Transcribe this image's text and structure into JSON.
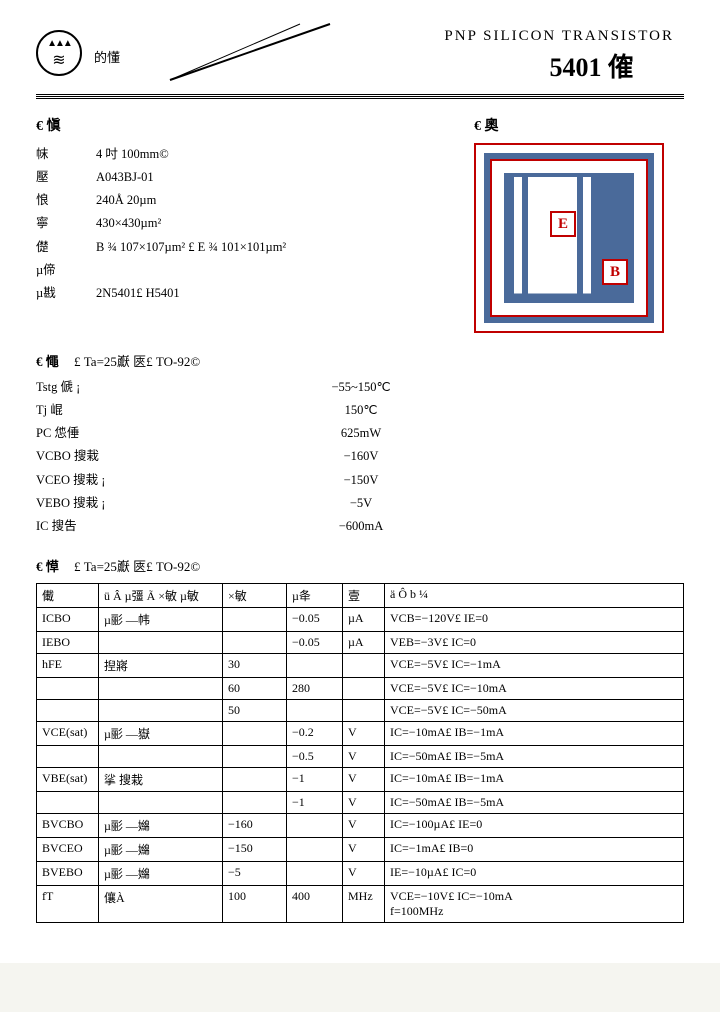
{
  "header": {
    "logo_label": "的懂",
    "subtitle": "PNP   SILICON   TRANSISTOR",
    "title": "5401 傕"
  },
  "section1": {
    "head_left": "€  愼",
    "head_right": "€  奧",
    "specs": [
      {
        "k": "帓",
        "v": "4 吋      100mm©"
      },
      {
        "k": "壓",
        "v": "A043BJ-01"
      },
      {
        "k": "悢",
        "v": "240Å 20µm"
      },
      {
        "k": "寧",
        "v": "430×430µm²"
      },
      {
        "k": "儊",
        "v": "B ¾  107×107µm² £  E ¾  101×101µm²"
      },
      {
        "k": "µ偙",
        "v": ""
      },
      {
        "k": "µ戡",
        "v": "2N5401£  H5401"
      }
    ],
    "die_e": "E",
    "die_b": "B"
  },
  "ratings": {
    "head": "€  憴",
    "cond": "£ Ta=25巚  匧£              TO-92©",
    "rows": [
      {
        "sym": "Tstg 傂                              ¡",
        "val": "−55~150℃"
      },
      {
        "sym": "Tj 崐",
        "val": "150℃"
      },
      {
        "sym": "PC 怹倕",
        "val": "625mW"
      },
      {
        "sym": "VCBO 搜栽",
        "val": "−160V"
      },
      {
        "sym": "VCEO 搜栽                    ¡",
        "val": "−150V"
      },
      {
        "sym": "VEBO 搜栽                              ¡",
        "val": "−5V"
      },
      {
        "sym": "IC 搜吿",
        "val": "−600mA"
      }
    ]
  },
  "char": {
    "head": "€  愺",
    "cond": "£ Ta=25巚  匧£              TO-92©",
    "headers": {
      "sym": "儎",
      "name": "ü     Â   µ彊    Ã           ×敏      µ敏",
      "min": "×敏",
      "max": "µ夅",
      "unit": "壹",
      "cond": "ä    Ô    b    ¼"
    },
    "rows": [
      {
        "sym": "ICBO",
        "name": "µ彨    —帏",
        "min": "",
        "max": "−0.05",
        "unit": "µA",
        "cond": "VCB=−120V£ IE=0"
      },
      {
        "sym": "IEBO",
        "name": "",
        "min": "",
        "max": "−0.05",
        "unit": "µA",
        "cond": "VEB=−3V£ IC=0"
      },
      {
        "sym": "hFE",
        "name": "揑嶈",
        "min": "30",
        "max": "",
        "unit": "",
        "cond": "VCE=−5V£ IC=−1mA"
      },
      {
        "sym": "",
        "name": "",
        "min": "60",
        "max": "280",
        "unit": "",
        "cond": "VCE=−5V£ IC=−10mA"
      },
      {
        "sym": "",
        "name": "",
        "min": "50",
        "max": "",
        "unit": "",
        "cond": "VCE=−5V£ IC=−50mA"
      },
      {
        "sym": "VCE(sat)",
        "name": "µ彨    —嶽",
        "min": "",
        "max": "−0.2",
        "unit": "V",
        "cond": "IC=−10mA£ IB=−1mA"
      },
      {
        "sym": "",
        "name": "",
        "min": "",
        "max": "−0.5",
        "unit": "V",
        "cond": "IC=−50mA£ IB=−5mA"
      },
      {
        "sym": "VBE(sat)",
        "name": "挲     搜栽",
        "min": "",
        "max": "−1",
        "unit": "V",
        "cond": "IC=−10mA£ IB=−1mA"
      },
      {
        "sym": "",
        "name": "",
        "min": "",
        "max": "−1",
        "unit": "V",
        "cond": "IC=−50mA£ IB=−5mA"
      },
      {
        "sym": "BVCBO",
        "name": "µ彨    —嬵",
        "min": "−160",
        "max": "",
        "unit": "V",
        "cond": "IC=−100µA£ IE=0"
      },
      {
        "sym": "BVCEO",
        "name": "µ彨    —嬵",
        "min": "−150",
        "max": "",
        "unit": "V",
        "cond": "IC=−1mA£ IB=0"
      },
      {
        "sym": "BVEBO",
        "name": "µ彨    —嬵",
        "min": "−5",
        "max": "",
        "unit": "V",
        "cond": "IE=−10µA£ IC=0"
      },
      {
        "sym": "fT",
        "name": "儴À",
        "min": "100",
        "max": "400",
        "unit": "MHz",
        "cond": "VCE=−10V£ IC=−10mA\nf=100MHz"
      }
    ]
  },
  "colors": {
    "page_bg": "#ffffff",
    "text": "#000000",
    "die_border": "#c00000",
    "die_pattern": "#4a6a9a"
  }
}
